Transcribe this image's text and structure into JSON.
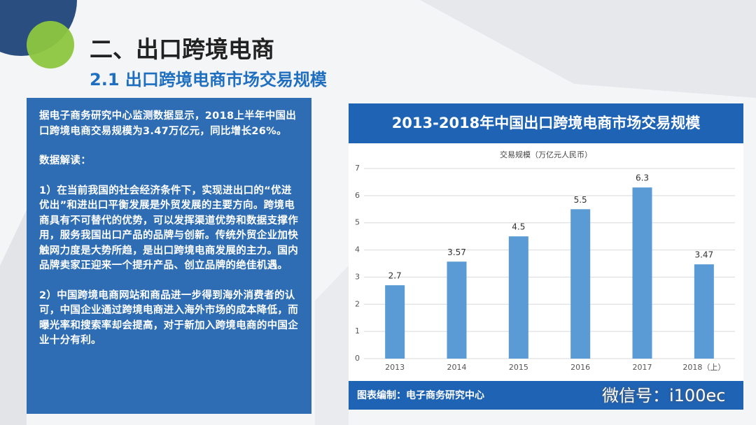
{
  "header": {
    "title": "二、出口跨境电商",
    "subtitle": "2.1 出口跨境电商市场交易规模"
  },
  "text_panel": {
    "paragraphs": [
      "据电子商务研究中心监测数据显示，2018上半年中国出口跨境电商交易规模为3.47万亿元，同比增长26%。",
      "数据解读：",
      "1）在当前我国的社会经济条件下，实现进出口的“优进优出”和进出口平衡发展是外贸发展的主要方向。跨境电商具有不可替代的优势，可以发挥渠道优势和数据支撑作用，服务我国出口产品的品牌与创新。传统外贸企业加快触网力度是大势所趋，是出口跨境电商发展的主力。国内品牌卖家正迎来一个提升产品、创立品牌的绝佳机遇。",
      "2）中国跨境电商网站和商品进一步得到海外消费者的认可，中国企业通过跨境电商进入海外市场的成本降低，而曝光率和搜索率却会提高，对于新加入跨境电商的中国企业十分有利。"
    ]
  },
  "chart_data": {
    "type": "bar",
    "title": "2013-2018年中国出口跨境电商市场交易规模",
    "y_label": "交易规模（万亿元人民币）",
    "categories": [
      "2013",
      "2014",
      "2015",
      "2016",
      "2017",
      "2018（上）"
    ],
    "values": [
      2.7,
      3.57,
      4.5,
      5.5,
      6.3,
      3.47
    ],
    "color": "#5b9bd5",
    "ylim": [
      0,
      7
    ],
    "yticks": [
      0,
      1,
      2,
      3,
      4,
      5,
      6,
      7
    ],
    "grid": true,
    "source": "图表编制：电子商务研究中心"
  },
  "watermark": "微信号：i100ec"
}
